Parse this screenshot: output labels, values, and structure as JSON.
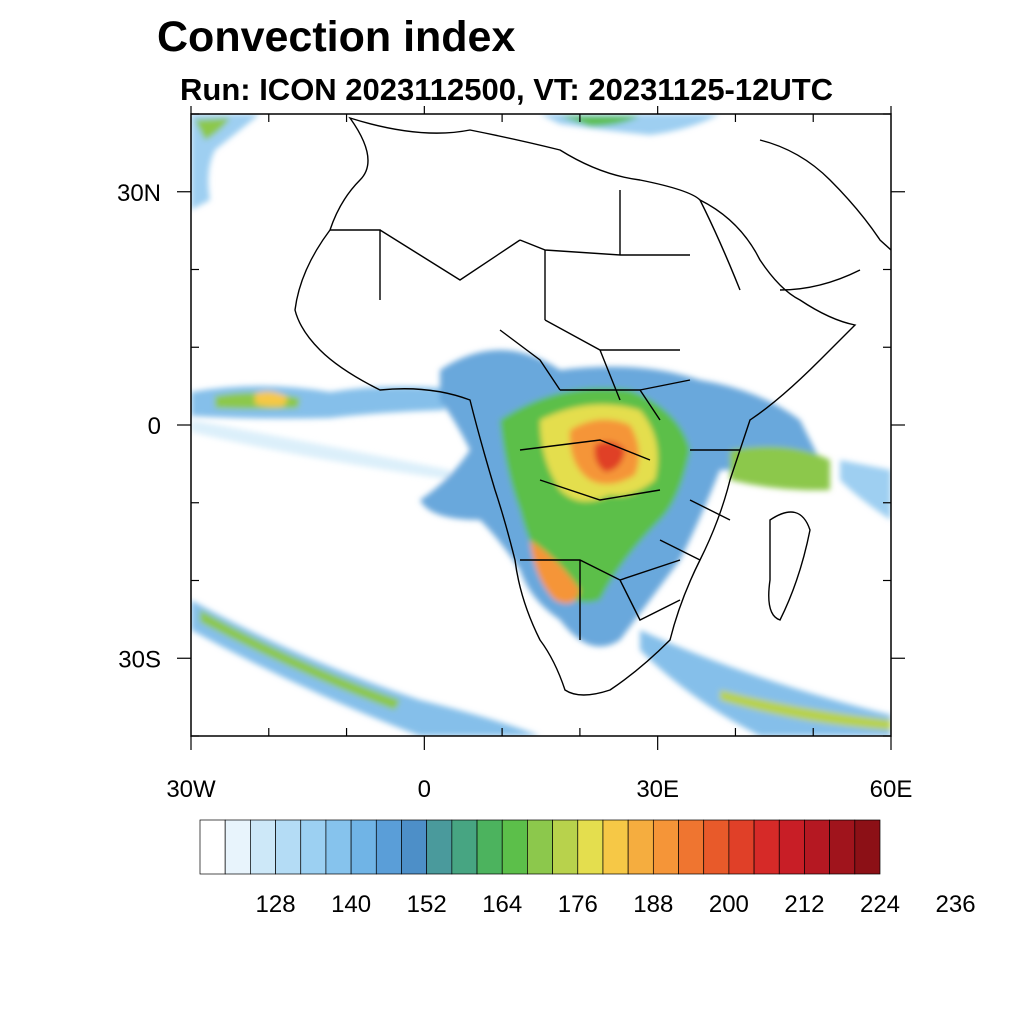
{
  "title": "Convection index",
  "subtitle": "Run: ICON 2023112500,  VT: 20231125-12UTC",
  "map": {
    "lon_range": [
      -30,
      60
    ],
    "lat_range": [
      -40,
      40
    ],
    "lat_ticks": [
      {
        "value": 30,
        "label": "30N"
      },
      {
        "value": 0,
        "label": "0"
      },
      {
        "value": -30,
        "label": "30S"
      }
    ],
    "lon_ticks": [
      {
        "value": -30,
        "label": "30W"
      },
      {
        "value": 0,
        "label": "0"
      },
      {
        "value": 30,
        "label": "30E"
      },
      {
        "value": 60,
        "label": "60E"
      }
    ],
    "minor_lat_ticks": [
      40,
      20,
      10,
      -10,
      -20,
      -40
    ],
    "minor_lon_ticks": [
      -20,
      -10,
      10,
      20,
      40,
      50
    ]
  },
  "colorbar": {
    "colors": [
      "#ffffff",
      "#e8f4fc",
      "#cde8f8",
      "#b4dcf5",
      "#9cd0f2",
      "#86c3ed",
      "#70b4e6",
      "#5a9ed8",
      "#4d8fc8",
      "#4a9a9c",
      "#47a582",
      "#4cb35e",
      "#5cbf4a",
      "#8cc84c",
      "#b8d24c",
      "#e4de4e",
      "#f6c846",
      "#f5ad3f",
      "#f59538",
      "#ef7530",
      "#e85a2a",
      "#e04028",
      "#d62a28",
      "#c81e26",
      "#b51822",
      "#a0141c",
      "#8c1016"
    ],
    "tick_values": [
      128,
      140,
      152,
      164,
      176,
      188,
      200,
      212,
      224,
      236
    ]
  }
}
